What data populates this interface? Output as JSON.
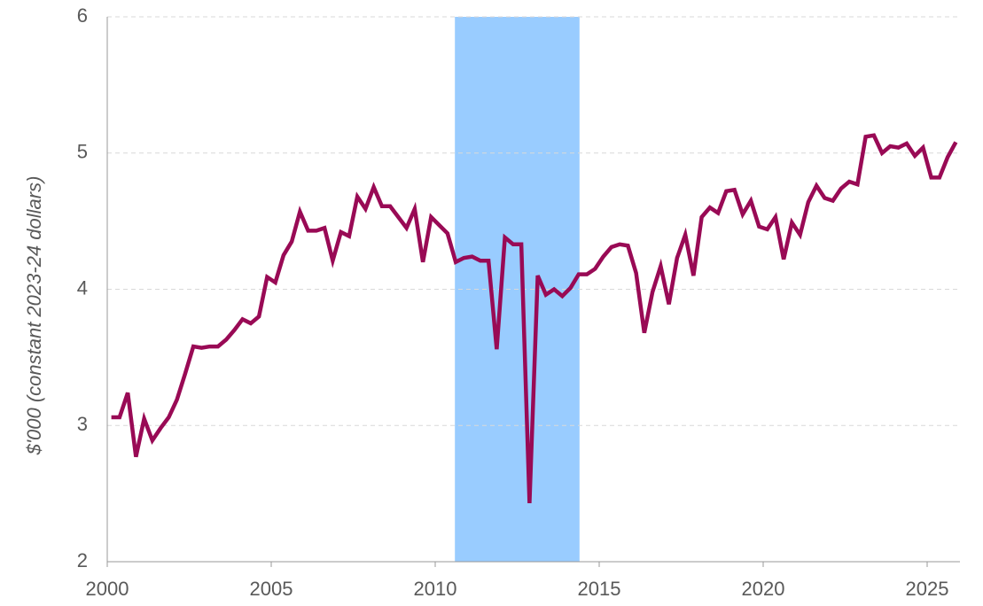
{
  "chart_data": {
    "type": "line",
    "y_label": "$'000 (constant 2023-24 dollars)",
    "x": [
      2000.125,
      2000.375,
      2000.625,
      2000.875,
      2001.125,
      2001.375,
      2001.625,
      2001.875,
      2002.125,
      2002.375,
      2002.625,
      2002.875,
      2003.125,
      2003.375,
      2003.625,
      2003.875,
      2004.125,
      2004.375,
      2004.625,
      2004.875,
      2005.125,
      2005.375,
      2005.625,
      2005.875,
      2006.125,
      2006.375,
      2006.625,
      2006.875,
      2007.125,
      2007.375,
      2007.625,
      2007.875,
      2008.125,
      2008.375,
      2008.625,
      2008.875,
      2009.125,
      2009.375,
      2009.625,
      2009.875,
      2010.125,
      2010.375,
      2010.625,
      2010.875,
      2011.125,
      2011.375,
      2011.625,
      2011.875,
      2012.125,
      2012.375,
      2012.625,
      2012.875,
      2013.125,
      2013.375,
      2013.625,
      2013.875,
      2014.125,
      2014.375,
      2014.625,
      2014.875,
      2015.125,
      2015.375,
      2015.625,
      2015.875,
      2016.125,
      2016.375,
      2016.625,
      2016.875,
      2017.125,
      2017.375,
      2017.625,
      2017.875,
      2018.125,
      2018.375,
      2018.625,
      2018.875,
      2019.125,
      2019.375,
      2019.625,
      2019.875,
      2020.125,
      2020.375,
      2020.625,
      2020.875,
      2021.125,
      2021.375,
      2021.625,
      2021.875,
      2022.125,
      2022.375,
      2022.625,
      2022.875,
      2023.125,
      2023.375,
      2023.625,
      2023.875,
      2024.125,
      2024.375,
      2024.625,
      2024.875,
      2025.125,
      2025.375,
      2025.625,
      2025.875
    ],
    "series": [
      {
        "color": "#990a55",
        "values": [
          3.06,
          3.06,
          3.24,
          2.77,
          3.05,
          2.89,
          2.98,
          3.06,
          3.19,
          3.38,
          3.58,
          3.57,
          3.58,
          3.58,
          3.63,
          3.7,
          3.78,
          3.75,
          3.8,
          4.09,
          4.05,
          4.25,
          4.35,
          4.57,
          4.43,
          4.43,
          4.45,
          4.21,
          4.42,
          4.39,
          4.68,
          4.59,
          4.75,
          4.61,
          4.61,
          4.53,
          4.45,
          4.59,
          4.2,
          4.53,
          4.47,
          4.41,
          4.2,
          4.23,
          4.24,
          4.21,
          4.21,
          3.56,
          4.38,
          4.33,
          4.33,
          2.43,
          4.1,
          3.96,
          4.0,
          3.95,
          4.01,
          4.11,
          4.11,
          4.15,
          4.24,
          4.31,
          4.33,
          4.32,
          4.12,
          3.68,
          3.98,
          4.17,
          3.89,
          4.23,
          4.4,
          4.1,
          4.53,
          4.6,
          4.56,
          4.72,
          4.73,
          4.55,
          4.65,
          4.46,
          4.44,
          4.53,
          4.22,
          4.49,
          4.4,
          4.64,
          4.76,
          4.67,
          4.65,
          4.74,
          4.79,
          4.77,
          5.12,
          5.13,
          5.0,
          5.05,
          5.04,
          5.07,
          4.98,
          5.04,
          4.82,
          4.82,
          4.97,
          5.08
        ]
      }
    ],
    "shaded_region": [
      2010.6,
      2014.4
    ],
    "shaded_color": "#99ccff",
    "xlim": [
      2000,
      2026
    ],
    "xticks": [
      2000,
      2005,
      2010,
      2015,
      2020,
      2025
    ],
    "ylim": [
      2,
      6
    ],
    "yticks": [
      2,
      3,
      4,
      5,
      6
    ],
    "grid": true
  }
}
